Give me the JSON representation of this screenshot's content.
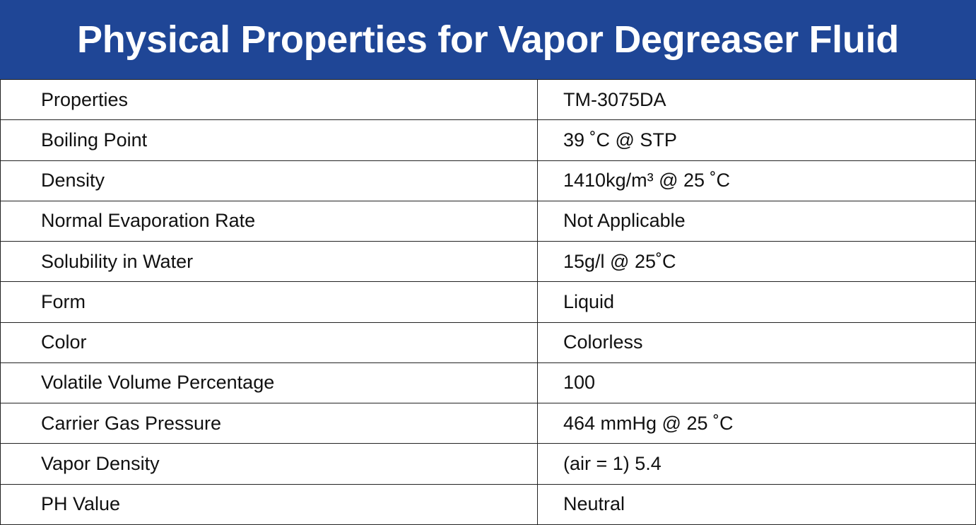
{
  "header": {
    "title": "Physical Properties for Vapor Degreaser Fluid"
  },
  "table": {
    "rows": [
      [
        "Properties",
        "TM-3075DA"
      ],
      [
        "Boiling Point",
        "39 ˚C @ STP"
      ],
      [
        "Density",
        "1410kg/m³ @ 25 ˚C"
      ],
      [
        "Normal Evaporation Rate",
        "Not Applicable"
      ],
      [
        "Solubility in Water",
        "15g/l @ 25˚C"
      ],
      [
        "Form",
        "Liquid"
      ],
      [
        "Color",
        "Colorless"
      ],
      [
        "Volatile Volume Percentage",
        "100"
      ],
      [
        "Carrier Gas Pressure",
        "464 mmHg @ 25 ˚C"
      ],
      [
        "Vapor Density",
        "(air = 1) 5.4"
      ],
      [
        "PH Value",
        "Neutral"
      ]
    ]
  }
}
